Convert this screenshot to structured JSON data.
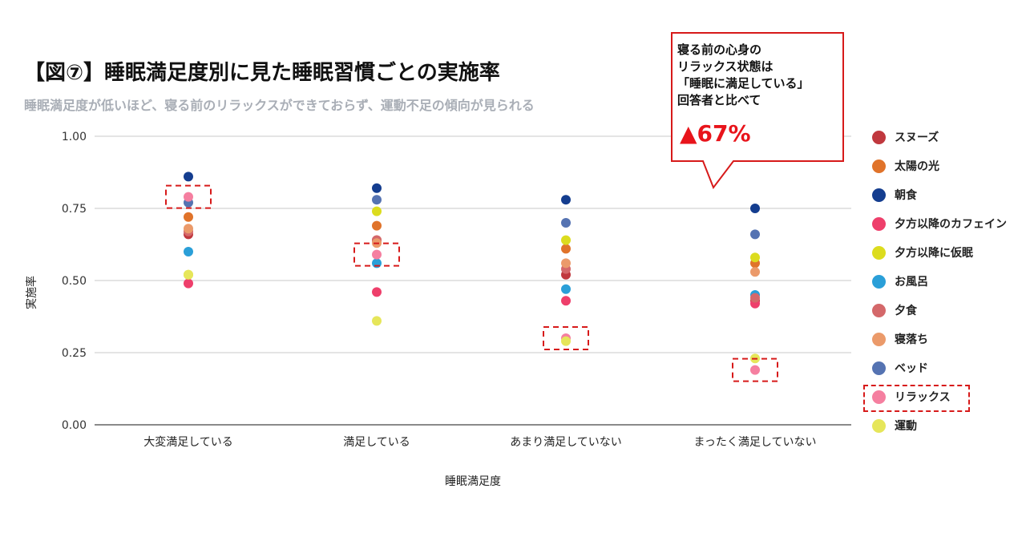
{
  "title": "【図⑦】睡眠満足度別に見た睡眠習慣ごとの実施率",
  "subtitle": "睡眠満足度が低いほど、寝る前のリラックスができておらず、運動不足の傾向が見られる",
  "callout": {
    "lines": [
      "寝る前の心身の",
      "リラックス状態は",
      "「睡眠に満足している」",
      "回答者と比べて"
    ],
    "highlight": "▲67%"
  },
  "chart_data": {
    "type": "scatter",
    "xlabel": "睡眠満足度",
    "ylabel": "実施率",
    "categories": [
      "大変満足している",
      "満足している",
      "あまり満足していない",
      "まったく満足していない"
    ],
    "ylim": [
      0,
      1
    ],
    "yticks": [
      "0.00",
      "0.25",
      "0.50",
      "0.75",
      "1.00"
    ],
    "grid": true,
    "legend_position": "right",
    "series": [
      {
        "name": "スヌーズ",
        "color": "#c0383e",
        "values": [
          0.66,
          0.64,
          0.52,
          0.43
        ]
      },
      {
        "name": "太陽の光",
        "color": "#e0732a",
        "values": [
          0.72,
          0.69,
          0.61,
          0.56
        ]
      },
      {
        "name": "朝食",
        "color": "#143d8f",
        "values": [
          0.86,
          0.82,
          0.78,
          0.75
        ]
      },
      {
        "name": "夕方以降のカフェイン",
        "color": "#ee3f6b",
        "values": [
          0.49,
          0.46,
          0.43,
          0.42
        ]
      },
      {
        "name": "夕方以降に仮眠",
        "color": "#dcdc1e",
        "values": [
          0.52,
          0.74,
          0.64,
          0.58
        ]
      },
      {
        "name": "お風呂",
        "color": "#2a9fd8",
        "values": [
          0.6,
          0.56,
          0.47,
          0.45
        ]
      },
      {
        "name": "夕食",
        "color": "#d4686a",
        "values": [
          0.67,
          0.64,
          0.54,
          0.44
        ]
      },
      {
        "name": "寝落ち",
        "color": "#eb9a6a",
        "values": [
          0.68,
          0.63,
          0.56,
          0.53
        ]
      },
      {
        "name": "ベッド",
        "color": "#5573b2",
        "values": [
          0.77,
          0.78,
          0.7,
          0.66
        ]
      },
      {
        "name": "リラックス",
        "color": "#f57fa0",
        "values": [
          0.79,
          0.59,
          0.3,
          0.19
        ]
      },
      {
        "name": "運動",
        "color": "#e6e65a",
        "values": [
          0.52,
          0.36,
          0.29,
          0.23
        ]
      }
    ],
    "highlighted_series": "リラックス"
  }
}
